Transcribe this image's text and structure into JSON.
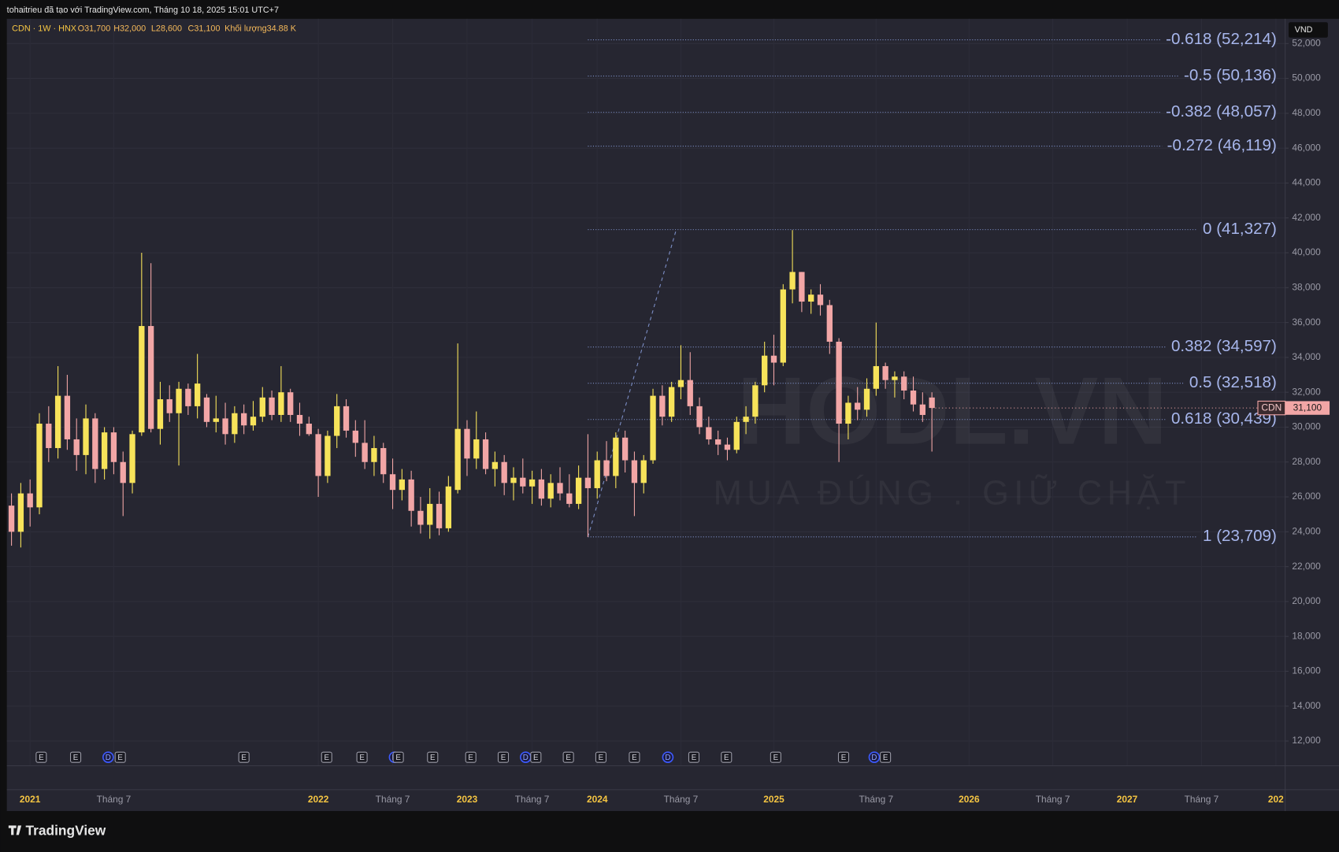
{
  "chart_data": {
    "type": "candlestick",
    "attribution": "tohaitrieu đã tạo với TradingView.com, Tháng 10 18, 2025 15:01 UTC+7",
    "symbol_info": "CDN · 1W · HNX",
    "ohlc_labels": [
      "O31,700",
      "H32,000",
      "L28,600",
      "C31,100"
    ],
    "volume_label": "Khối lượng34.88 K",
    "currency": "VND",
    "symbol": "CDN",
    "last_price_label": "31,100",
    "watermark": "HODL.VN",
    "watermark_slogan": "MUA ĐÚNG . GIỮ CHẶT",
    "brand": "TradingView",
    "up_color": "#f7e35a",
    "down_color": "#f2a6a6",
    "candles": [
      [
        25500,
        26200,
        23200,
        24000
      ],
      [
        24000,
        26800,
        23100,
        26200
      ],
      [
        26200,
        27000,
        24300,
        25400
      ],
      [
        25400,
        30800,
        25000,
        30200
      ],
      [
        30200,
        31200,
        28000,
        28800
      ],
      [
        28800,
        33500,
        28200,
        31800
      ],
      [
        31800,
        33000,
        28700,
        29300
      ],
      [
        29300,
        30500,
        27500,
        28400
      ],
      [
        28400,
        31300,
        27300,
        30500
      ],
      [
        30500,
        30800,
        26800,
        27600
      ],
      [
        27600,
        30000,
        27000,
        29700
      ],
      [
        29700,
        30000,
        27300,
        28000
      ],
      [
        28000,
        28600,
        24900,
        26800
      ],
      [
        26800,
        29800,
        26200,
        29600
      ],
      [
        29700,
        40000,
        29500,
        35800
      ],
      [
        35800,
        39400,
        29700,
        29900
      ],
      [
        29900,
        32600,
        29000,
        31600
      ],
      [
        31600,
        32400,
        30300,
        30800
      ],
      [
        30800,
        32600,
        27800,
        32200
      ],
      [
        32200,
        32500,
        30700,
        31200
      ],
      [
        31200,
        34200,
        30500,
        32500
      ],
      [
        31700,
        31900,
        30000,
        30300
      ],
      [
        30300,
        31800,
        29700,
        30500
      ],
      [
        30500,
        31400,
        29000,
        29600
      ],
      [
        29600,
        31200,
        29100,
        30800
      ],
      [
        30800,
        31300,
        29600,
        30100
      ],
      [
        30100,
        31500,
        29800,
        30600
      ],
      [
        30600,
        32300,
        30300,
        31700
      ],
      [
        31700,
        32100,
        30400,
        30700
      ],
      [
        30700,
        33500,
        30300,
        32000
      ],
      [
        32000,
        32200,
        30300,
        30700
      ],
      [
        30700,
        31400,
        29500,
        30200
      ],
      [
        30200,
        30600,
        29500,
        29600
      ],
      [
        29600,
        29900,
        26000,
        27200
      ],
      [
        27200,
        29800,
        26800,
        29500
      ],
      [
        29500,
        31900,
        28800,
        31200
      ],
      [
        31200,
        31600,
        29400,
        29800
      ],
      [
        29800,
        30400,
        28300,
        29100
      ],
      [
        29100,
        30400,
        27600,
        28000
      ],
      [
        28000,
        29500,
        27200,
        28800
      ],
      [
        28800,
        29100,
        26800,
        27300
      ],
      [
        27300,
        28200,
        25300,
        26400
      ],
      [
        26400,
        27600,
        25800,
        27000
      ],
      [
        27000,
        27500,
        24300,
        25200
      ],
      [
        25200,
        26000,
        23900,
        24400
      ],
      [
        24400,
        26500,
        23600,
        25600
      ],
      [
        25600,
        26300,
        23800,
        24200
      ],
      [
        24200,
        27200,
        24000,
        26600
      ],
      [
        26400,
        34800,
        26200,
        29900
      ],
      [
        29900,
        30400,
        27200,
        28200
      ],
      [
        28200,
        30900,
        27600,
        29300
      ],
      [
        29300,
        29700,
        27300,
        27600
      ],
      [
        27600,
        28600,
        26600,
        28000
      ],
      [
        28000,
        28400,
        26100,
        26800
      ],
      [
        26800,
        27700,
        25800,
        27100
      ],
      [
        27100,
        28200,
        26200,
        26600
      ],
      [
        26600,
        27500,
        25600,
        27000
      ],
      [
        27000,
        27600,
        25500,
        25900
      ],
      [
        25900,
        27300,
        25400,
        26800
      ],
      [
        26800,
        27700,
        25800,
        26200
      ],
      [
        26200,
        27300,
        25400,
        25600
      ],
      [
        25600,
        27800,
        25300,
        27100
      ],
      [
        27100,
        29600,
        23700,
        26500
      ],
      [
        26500,
        28600,
        25900,
        28100
      ],
      [
        28100,
        29200,
        26900,
        27200
      ],
      [
        27200,
        29700,
        26500,
        29400
      ],
      [
        29400,
        29800,
        27400,
        28100
      ],
      [
        28100,
        28600,
        24900,
        26800
      ],
      [
        26800,
        28400,
        26200,
        28100
      ],
      [
        28100,
        32200,
        27900,
        31800
      ],
      [
        31800,
        32400,
        30100,
        30600
      ],
      [
        30600,
        32600,
        30300,
        32300
      ],
      [
        32300,
        34700,
        31600,
        32700
      ],
      [
        32700,
        34300,
        30700,
        31200
      ],
      [
        31200,
        31700,
        29600,
        30000
      ],
      [
        30000,
        30600,
        29000,
        29300
      ],
      [
        29300,
        29800,
        28400,
        29000
      ],
      [
        29000,
        29400,
        28100,
        28700
      ],
      [
        28700,
        30600,
        28500,
        30300
      ],
      [
        30300,
        31200,
        29600,
        30600
      ],
      [
        30600,
        32600,
        30200,
        32400
      ],
      [
        32400,
        34900,
        32000,
        34100
      ],
      [
        34100,
        35300,
        32400,
        33700
      ],
      [
        33700,
        38200,
        33500,
        37900
      ],
      [
        37900,
        41300,
        37100,
        38900
      ],
      [
        38900,
        38900,
        36600,
        37200
      ],
      [
        37200,
        37900,
        36500,
        37600
      ],
      [
        37600,
        38200,
        36400,
        37000
      ],
      [
        37000,
        37300,
        34200,
        34900
      ],
      [
        34900,
        35100,
        28000,
        30200
      ],
      [
        30200,
        31800,
        29300,
        31400
      ],
      [
        31400,
        32300,
        30400,
        31000
      ],
      [
        31000,
        32800,
        30600,
        32200
      ],
      [
        32200,
        36000,
        31800,
        33500
      ],
      [
        33500,
        33700,
        32200,
        32700
      ],
      [
        32700,
        33200,
        31700,
        32900
      ],
      [
        32900,
        33200,
        31600,
        32100
      ],
      [
        32100,
        32900,
        30900,
        31300
      ],
      [
        31300,
        32000,
        30300,
        30700
      ],
      [
        31700,
        32000,
        28600,
        31100
      ]
    ],
    "fib_levels": [
      {
        "price": 52214,
        "label": "-0.618 (52,214)"
      },
      {
        "price": 50136,
        "label": "-0.5 (50,136)"
      },
      {
        "price": 48057,
        "label": "-0.382 (48,057)"
      },
      {
        "price": 46119,
        "label": "-0.272 (46,119)"
      },
      {
        "price": 41327,
        "label": "0 (41,327)"
      },
      {
        "price": 34597,
        "label": "0.382 (34,597)"
      },
      {
        "price": 32518,
        "label": "0.5 (32,518)"
      },
      {
        "price": 30439,
        "label": "0.618 (30,439)"
      },
      {
        "price": 23709,
        "label": "1 (23,709)"
      }
    ],
    "events": [
      {
        "x": 3.2,
        "label": "E"
      },
      {
        "x": 6.9,
        "label": "E"
      },
      {
        "x": 10.4,
        "label": "D"
      },
      {
        "x": 11.7,
        "label": "E"
      },
      {
        "x": 25,
        "label": "E"
      },
      {
        "x": 33.9,
        "label": "E"
      },
      {
        "x": 37.7,
        "label": "E"
      },
      {
        "x": 41.2,
        "label": "D"
      },
      {
        "x": 41.6,
        "label": "E"
      },
      {
        "x": 45.3,
        "label": "E"
      },
      {
        "x": 49.4,
        "label": "E"
      },
      {
        "x": 52.9,
        "label": "E"
      },
      {
        "x": 55.3,
        "label": "D"
      },
      {
        "x": 56.4,
        "label": "E"
      },
      {
        "x": 59.9,
        "label": "E"
      },
      {
        "x": 63.4,
        "label": "E"
      },
      {
        "x": 67,
        "label": "E"
      },
      {
        "x": 70.6,
        "label": "D"
      },
      {
        "x": 73.4,
        "label": "E"
      },
      {
        "x": 76.9,
        "label": "E"
      },
      {
        "x": 82.2,
        "label": "E"
      },
      {
        "x": 89.5,
        "label": "E"
      },
      {
        "x": 92.8,
        "label": "D"
      },
      {
        "x": 94,
        "label": "E"
      }
    ],
    "xlim": [
      -0.5,
      137
    ],
    "xticks": [
      {
        "value": 2,
        "label": "2021"
      },
      {
        "value": 11,
        "label": "Tháng 7"
      },
      {
        "value": 33,
        "label": "2022"
      },
      {
        "value": 41,
        "label": "Tháng 7"
      },
      {
        "value": 49,
        "label": "2023"
      },
      {
        "value": 56,
        "label": "Tháng 7"
      },
      {
        "value": 63,
        "label": "2024"
      },
      {
        "value": 72,
        "label": "Tháng 7"
      },
      {
        "value": 82,
        "label": "2025"
      },
      {
        "value": 93,
        "label": "Tháng 7"
      },
      {
        "value": 103,
        "label": "2026"
      },
      {
        "value": 112,
        "label": "Tháng 7"
      },
      {
        "value": 120,
        "label": "2027"
      },
      {
        "value": 128,
        "label": "Tháng 7"
      },
      {
        "value": 136,
        "label": "202"
      }
    ],
    "ylim": [
      10580,
      53420
    ],
    "yticks": [
      {
        "value": 12000,
        "label": "12,000"
      },
      {
        "value": 14000,
        "label": "14,000"
      },
      {
        "value": 16000,
        "label": "16,000"
      },
      {
        "value": 18000,
        "label": "18,000"
      },
      {
        "value": 20000,
        "label": "20,000"
      },
      {
        "value": 22000,
        "label": "22,000"
      },
      {
        "value": 24000,
        "label": "24,000"
      },
      {
        "value": 26000,
        "label": "26,000"
      },
      {
        "value": 28000,
        "label": "28,000"
      },
      {
        "value": 30000,
        "label": "30,000"
      },
      {
        "value": 32000,
        "label": "32,000"
      },
      {
        "value": 34000,
        "label": "34,000"
      },
      {
        "value": 36000,
        "label": "36,000"
      },
      {
        "value": 38000,
        "label": "38,000"
      },
      {
        "value": 40000,
        "label": "40,000"
      },
      {
        "value": 42000,
        "label": "42,000"
      },
      {
        "value": 44000,
        "label": "44,000"
      },
      {
        "value": 46000,
        "label": "46,000"
      },
      {
        "value": 48000,
        "label": "48,000"
      },
      {
        "value": 50000,
        "label": "50,000"
      },
      {
        "value": 52000,
        "label": "52,000"
      }
    ],
    "grid": true
  }
}
